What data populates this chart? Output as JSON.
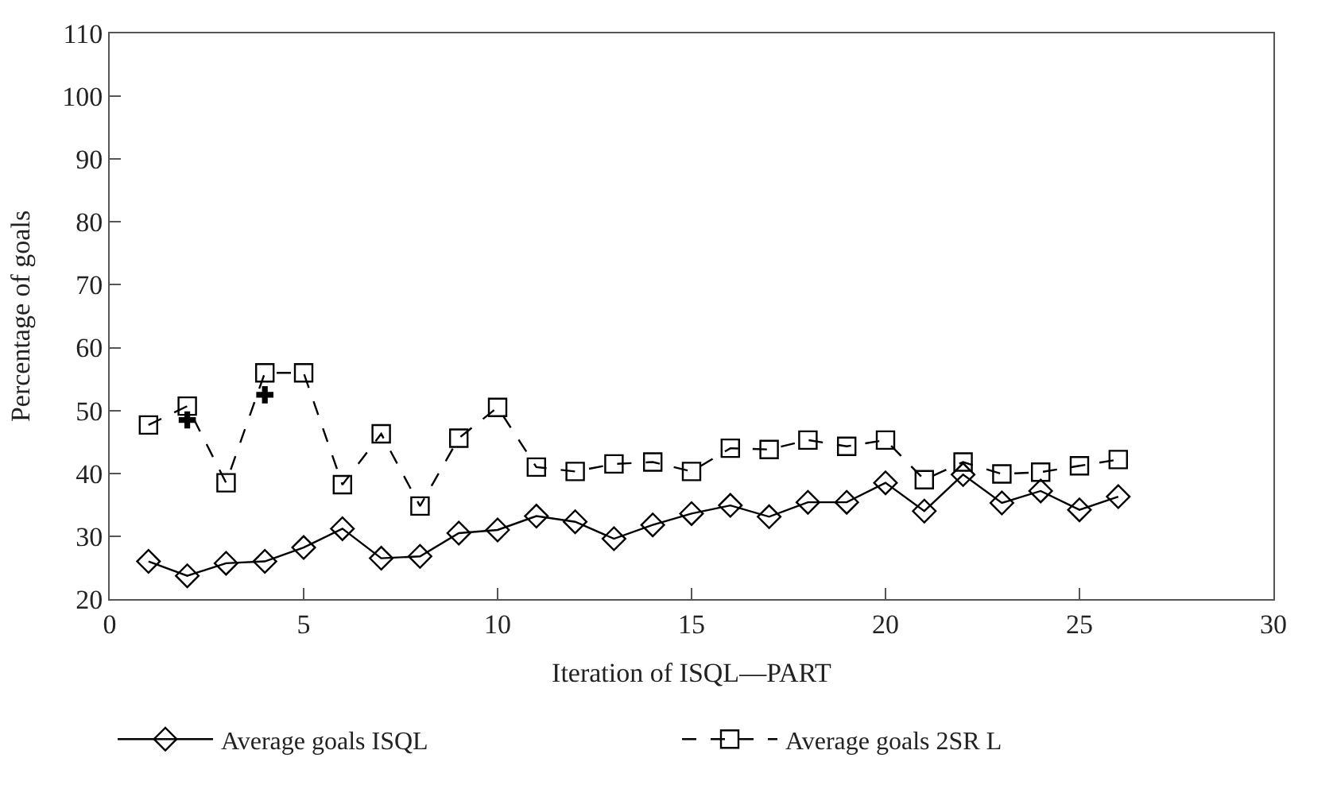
{
  "chart_data": {
    "type": "line",
    "xlabel": "Iteration of ISQL—PART",
    "ylabel": "Percentage of goals",
    "x": [
      1,
      2,
      3,
      4,
      5,
      6,
      7,
      8,
      9,
      10,
      11,
      12,
      13,
      14,
      15,
      16,
      17,
      18,
      19,
      20,
      21,
      22,
      23,
      24,
      25,
      26
    ],
    "series": [
      {
        "name": "Average goals ISQL",
        "color": "#000000",
        "marker": "diamond",
        "line_style": "solid",
        "values": [
          26,
          23.7,
          25.7,
          26,
          28.2,
          31.2,
          26.5,
          26.8,
          30.5,
          31,
          33.2,
          32.3,
          29.6,
          31.8,
          33.6,
          34.9,
          33.1,
          35.4,
          35.4,
          38.5,
          34,
          39.8,
          35.3,
          37.2,
          34.2,
          36.3
        ]
      },
      {
        "name": "Average goals 2SR L",
        "color": "#000000",
        "marker": "square",
        "line_style": "dashed",
        "values": [
          47.7,
          50.7,
          38.5,
          56,
          56,
          38.2,
          46.3,
          34.8,
          45.6,
          50.5,
          41,
          40.3,
          41.5,
          41.8,
          40.3,
          44,
          43.8,
          45.3,
          44.3,
          45.3,
          39,
          41.8,
          39.9,
          40.2,
          41.2,
          42.2
        ]
      },
      {
        "type": "scatter",
        "color": "#000000",
        "marker": "cross",
        "x": [
          2,
          4
        ],
        "values": [
          48.5,
          52.5
        ]
      }
    ],
    "xlim": [
      0,
      30
    ],
    "xticks": [
      0,
      5,
      10,
      15,
      20,
      25,
      30
    ],
    "ylim": [
      20,
      110
    ],
    "yticks": [
      20,
      30,
      40,
      50,
      60,
      70,
      80,
      90,
      100,
      110
    ],
    "grid": false,
    "legend": "bottom"
  }
}
